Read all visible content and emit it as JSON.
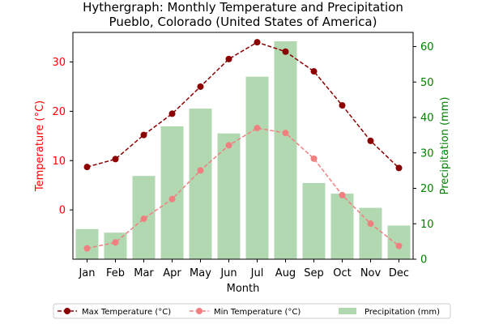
{
  "chart_data": {
    "type": "bar",
    "title_line1": "Hythergraph: Monthly Temperature and Precipitation",
    "title_line2": "Pueblo, Colorado (United States of America)",
    "xlabel": "Month",
    "ylabel_left": "Temperature (°C)",
    "ylabel_right": "Precipitation (mm)",
    "categories": [
      "Jan",
      "Feb",
      "Mar",
      "Apr",
      "May",
      "Jun",
      "Jul",
      "Aug",
      "Sep",
      "Oct",
      "Nov",
      "Dec"
    ],
    "ylim_left": [
      -10,
      36
    ],
    "yticks_left": [
      0,
      10,
      20,
      30
    ],
    "ylim_right": [
      0,
      64
    ],
    "yticks_right": [
      0,
      10,
      20,
      30,
      40,
      50,
      60
    ],
    "legend_position": "bottom-center",
    "series": [
      {
        "name": "Max Temperature (°C)",
        "axis": "left",
        "kind": "line",
        "style": "dashed-circle",
        "color": "#8b0000",
        "values": [
          8.7,
          10.3,
          15.2,
          19.5,
          25.0,
          30.6,
          34.0,
          32.1,
          28.1,
          21.2,
          14.0,
          8.5
        ]
      },
      {
        "name": "Min Temperature (°C)",
        "axis": "left",
        "kind": "line",
        "style": "dashed-circle",
        "color": "#f08080",
        "values": [
          -7.8,
          -6.6,
          -1.8,
          2.2,
          8.0,
          13.1,
          16.6,
          15.6,
          10.4,
          3.0,
          -2.8,
          -7.3
        ]
      },
      {
        "name": "Precipitation (mm)",
        "axis": "right",
        "kind": "bar",
        "color": "#b2d8b2",
        "values": [
          8.5,
          7.5,
          23.5,
          37.5,
          42.5,
          35.5,
          51.5,
          61.5,
          21.5,
          18.5,
          14.5,
          9.5
        ]
      }
    ]
  }
}
